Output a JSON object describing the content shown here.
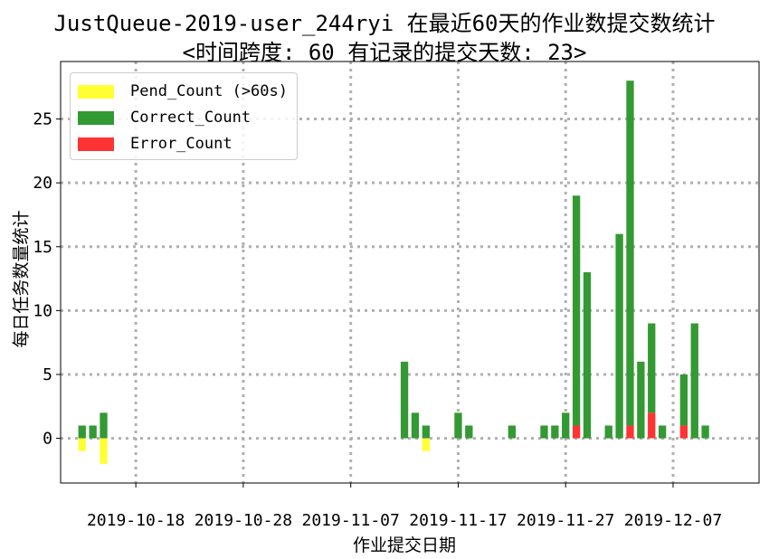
{
  "title": {
    "line1": "JustQueue-2019-user_244ryi 在最近60天的作业数提交数统计",
    "line2": "<时间跨度: 60  有记录的提交天数: 23>"
  },
  "colors": {
    "pend": "#ffff33",
    "correct": "#339933",
    "error": "#ff3333",
    "grid": "#b0b0b0"
  },
  "chart_data": {
    "type": "bar",
    "title": "JustQueue-2019-user_244ryi 在最近60天的作业数提交数统计 <时间跨度: 60  有记录的提交天数: 23>",
    "xlabel": "作业提交日期",
    "ylabel": "每日任务数量统计",
    "ylim": [
      -3.5,
      29.5
    ],
    "xlim": [
      "2019-10-11",
      "2019-12-15"
    ],
    "y_ticks": [
      0,
      5,
      10,
      15,
      20,
      25
    ],
    "x_tick_labels": [
      "2019-10-18",
      "2019-10-28",
      "2019-11-07",
      "2019-11-17",
      "2019-11-27",
      "2019-12-07"
    ],
    "grid": true,
    "legend_position": "upper-left",
    "series": [
      {
        "name": "Pend_Count (>60s)",
        "color": "#ffff33"
      },
      {
        "name": "Correct_Count",
        "color": "#339933"
      },
      {
        "name": "Error_Count",
        "color": "#ff3333"
      }
    ],
    "data": [
      {
        "date": "2019-10-13",
        "correct": 1,
        "error": 0,
        "pend": 1
      },
      {
        "date": "2019-10-14",
        "correct": 1,
        "error": 0,
        "pend": 0
      },
      {
        "date": "2019-10-15",
        "correct": 2,
        "error": 0,
        "pend": 2
      },
      {
        "date": "2019-11-12",
        "correct": 6,
        "error": 0,
        "pend": 0
      },
      {
        "date": "2019-11-13",
        "correct": 2,
        "error": 0,
        "pend": 0
      },
      {
        "date": "2019-11-14",
        "correct": 1,
        "error": 0,
        "pend": 1
      },
      {
        "date": "2019-11-17",
        "correct": 2,
        "error": 0,
        "pend": 0
      },
      {
        "date": "2019-11-18",
        "correct": 1,
        "error": 0,
        "pend": 0
      },
      {
        "date": "2019-11-22",
        "correct": 1,
        "error": 0,
        "pend": 0
      },
      {
        "date": "2019-11-25",
        "correct": 1,
        "error": 0,
        "pend": 0
      },
      {
        "date": "2019-11-26",
        "correct": 1,
        "error": 0,
        "pend": 0
      },
      {
        "date": "2019-11-27",
        "correct": 2,
        "error": 0,
        "pend": 0
      },
      {
        "date": "2019-11-28",
        "correct": 18,
        "error": 1,
        "pend": 0
      },
      {
        "date": "2019-11-29",
        "correct": 13,
        "error": 0,
        "pend": 0
      },
      {
        "date": "2019-12-01",
        "correct": 1,
        "error": 0,
        "pend": 0
      },
      {
        "date": "2019-12-02",
        "correct": 16,
        "error": 0,
        "pend": 0
      },
      {
        "date": "2019-12-03",
        "correct": 27,
        "error": 1,
        "pend": 0
      },
      {
        "date": "2019-12-04",
        "correct": 6,
        "error": 0,
        "pend": 0
      },
      {
        "date": "2019-12-05",
        "correct": 7,
        "error": 2,
        "pend": 0
      },
      {
        "date": "2019-12-06",
        "correct": 1,
        "error": 0,
        "pend": 0
      },
      {
        "date": "2019-12-08",
        "correct": 4,
        "error": 1,
        "pend": 0
      },
      {
        "date": "2019-12-09",
        "correct": 9,
        "error": 0,
        "pend": 0
      },
      {
        "date": "2019-12-10",
        "correct": 1,
        "error": 0,
        "pend": 0
      }
    ]
  }
}
